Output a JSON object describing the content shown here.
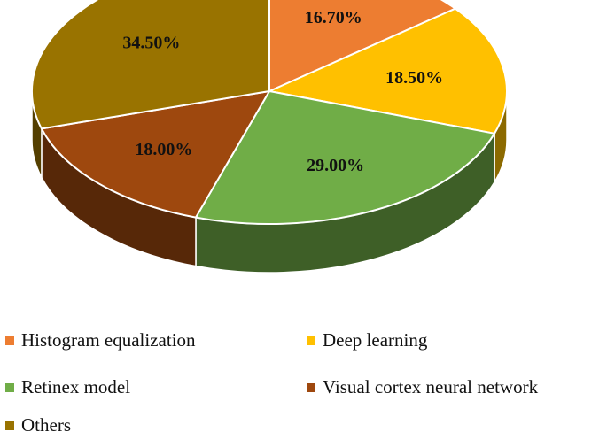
{
  "chart_data": {
    "type": "pie",
    "style": "3d",
    "slices": [
      {
        "label": "Histogram equalization",
        "value": 16.7,
        "display": "16.70%",
        "color": "#ED7D31"
      },
      {
        "label": "Deep learning",
        "value": 18.5,
        "display": "18.50%",
        "color": "#FFC000"
      },
      {
        "label": "Retinex model",
        "value": 29.0,
        "display": "29.00%",
        "color": "#70AD47"
      },
      {
        "label": "Visual cortex neural network",
        "value": 18.0,
        "display": "18.00%",
        "color": "#9E480E"
      },
      {
        "label": "Others",
        "value": 34.5,
        "display": "34.50%",
        "color": "#997300"
      }
    ],
    "legend_placement": "bottom"
  }
}
